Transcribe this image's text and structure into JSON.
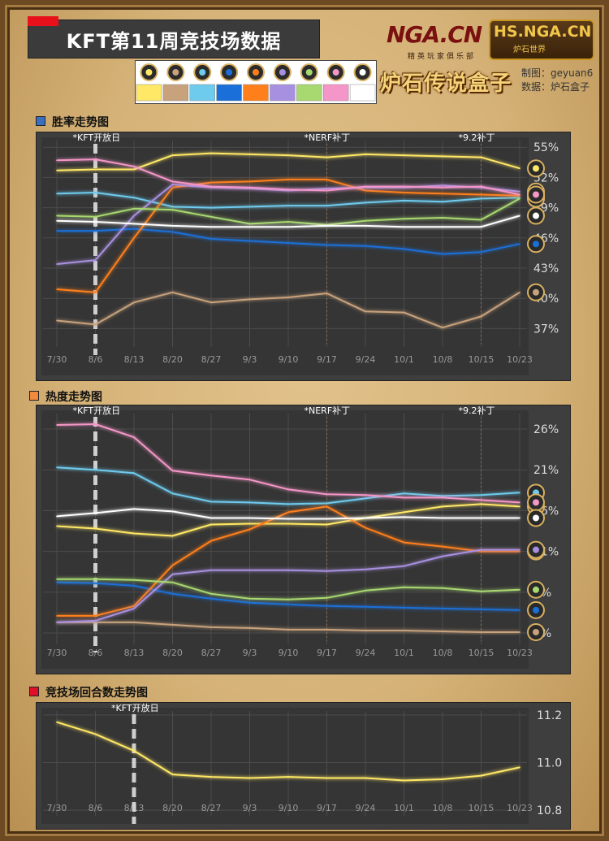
{
  "title": "KFT第11周竞技场数据",
  "logos": {
    "nga": "NGA.CN",
    "nga_sub": "精英玩家俱乐部",
    "hs": "HS.NGA.CN",
    "hs_sub": "炉石世界",
    "box": "炉石传说盒子"
  },
  "credits": {
    "maker": "制图：geyuan6",
    "source": "数据：炉石盒子"
  },
  "legend_colors": [
    "#ffe866",
    "#c8a27c",
    "#6ecbee",
    "#1a6fd8",
    "#ff7f1a",
    "#a890e0",
    "#a8d870",
    "#f596c8",
    "#ffffff"
  ],
  "legend_icons": [
    "hunter-icon",
    "warrior-icon",
    "mage-icon",
    "warlock-icon",
    "shaman-icon",
    "priest-icon",
    "rogue-icon",
    "paladin-icon",
    "druid-icon"
  ],
  "chart_data": [
    {
      "type": "line",
      "title": "胜率走势图",
      "categories": [
        "7/30",
        "8/6",
        "8/13",
        "8/20",
        "8/27",
        "9/3",
        "9/10",
        "9/17",
        "9/24",
        "10/1",
        "10/8",
        "10/15",
        "10/23"
      ],
      "ylim": [
        35.5,
        55.5
      ],
      "yticks": [
        "55%",
        "52%",
        "49%",
        "46%",
        "43%",
        "40%",
        "37%"
      ],
      "ytick_values": [
        55,
        52,
        49,
        46,
        43,
        40,
        37
      ],
      "annotations": [
        {
          "x": "8/6",
          "text": "*KFT开放日"
        },
        {
          "x": "9/17",
          "text": "*NERF补丁"
        },
        {
          "x": "10/15",
          "text": "*9.2补丁"
        }
      ],
      "series": [
        {
          "color": "#ffe866",
          "values": [
            52.7,
            52.8,
            52.8,
            54.2,
            54.4,
            54.3,
            54.2,
            54.0,
            54.3,
            54.2,
            54.1,
            54.0,
            52.9
          ]
        },
        {
          "color": "#c8a27c",
          "values": [
            37.8,
            37.4,
            39.6,
            40.6,
            39.6,
            39.9,
            40.1,
            40.5,
            38.7,
            38.6,
            37.1,
            38.2,
            40.6
          ]
        },
        {
          "color": "#6ecbee",
          "values": [
            50.4,
            50.5,
            50.0,
            49.1,
            49.0,
            49.1,
            49.2,
            49.2,
            49.5,
            49.7,
            49.6,
            49.9,
            50.0
          ]
        },
        {
          "color": "#1a6fd8",
          "values": [
            46.7,
            46.7,
            46.9,
            46.6,
            45.9,
            45.7,
            45.5,
            45.3,
            45.2,
            44.9,
            44.4,
            44.6,
            45.4
          ]
        },
        {
          "color": "#ff7f1a",
          "values": [
            40.9,
            40.6,
            46.0,
            51.0,
            51.5,
            51.6,
            51.8,
            51.8,
            50.7,
            50.5,
            50.4,
            50.3,
            50.2
          ]
        },
        {
          "color": "#a890e0",
          "values": [
            43.4,
            43.8,
            48.2,
            51.3,
            51.0,
            50.9,
            50.7,
            50.9,
            51.0,
            51.0,
            51.2,
            51.0,
            50.6
          ]
        },
        {
          "color": "#a8d870",
          "values": [
            48.2,
            48.1,
            48.9,
            48.8,
            48.1,
            47.4,
            47.6,
            47.3,
            47.7,
            47.9,
            48.0,
            47.8,
            49.9
          ]
        },
        {
          "color": "#f596c8",
          "values": [
            53.7,
            53.8,
            53.1,
            51.6,
            51.1,
            51.0,
            50.8,
            50.7,
            51.1,
            51.1,
            51.0,
            51.1,
            50.3
          ]
        },
        {
          "color": "#ffffff",
          "values": [
            47.7,
            47.6,
            47.4,
            47.2,
            47.1,
            47.1,
            47.1,
            47.2,
            47.2,
            47.1,
            47.1,
            47.1,
            48.2
          ]
        }
      ]
    },
    {
      "type": "line",
      "title": "热度走势图",
      "categories": [
        "7/30",
        "8/6",
        "8/13",
        "8/20",
        "8/27",
        "9/3",
        "9/10",
        "9/17",
        "9/24",
        "10/1",
        "10/8",
        "10/15",
        "10/23"
      ],
      "ylim": [
        0,
        27.5
      ],
      "yticks": [
        "26%",
        "21%",
        "16%",
        "11%",
        "6%",
        "1%"
      ],
      "ytick_values": [
        26,
        21,
        16,
        11,
        6,
        1
      ],
      "annotations": [
        {
          "x": "8/6",
          "text": "*KFT开放日"
        },
        {
          "x": "9/17",
          "text": "*NERF补丁"
        },
        {
          "x": "10/15",
          "text": "*9.2补丁"
        }
      ],
      "series": [
        {
          "color": "#ffe866",
          "values": [
            14.1,
            13.8,
            13.2,
            12.9,
            14.3,
            14.4,
            14.4,
            14.3,
            15.1,
            15.8,
            16.5,
            16.8,
            16.5
          ]
        },
        {
          "color": "#c8a27c",
          "values": [
            2.3,
            2.3,
            2.3,
            2.0,
            1.7,
            1.6,
            1.4,
            1.4,
            1.3,
            1.3,
            1.2,
            1.1,
            1.1
          ]
        },
        {
          "color": "#6ecbee",
          "values": [
            21.3,
            21.0,
            20.6,
            18.1,
            17.1,
            17.0,
            16.8,
            16.9,
            17.5,
            18.1,
            17.8,
            17.9,
            18.2
          ]
        },
        {
          "color": "#1a6fd8",
          "values": [
            7.2,
            7.1,
            6.8,
            5.8,
            5.2,
            4.7,
            4.5,
            4.3,
            4.2,
            4.1,
            4.0,
            3.9,
            3.8
          ]
        },
        {
          "color": "#ff7f1a",
          "values": [
            3.1,
            3.1,
            4.3,
            9.3,
            12.3,
            13.7,
            15.8,
            16.5,
            13.9,
            12.1,
            11.6,
            11.0,
            11.0
          ]
        },
        {
          "color": "#a890e0",
          "values": [
            2.3,
            2.5,
            4.0,
            8.2,
            8.7,
            8.7,
            8.7,
            8.6,
            8.8,
            9.2,
            10.4,
            11.2,
            11.2
          ]
        },
        {
          "color": "#a8d870",
          "values": [
            7.6,
            7.6,
            7.5,
            7.2,
            5.8,
            5.2,
            5.1,
            5.3,
            6.2,
            6.6,
            6.5,
            6.1,
            6.3
          ]
        },
        {
          "color": "#f596c8",
          "values": [
            26.5,
            26.6,
            25.0,
            20.9,
            20.3,
            19.8,
            18.6,
            18.0,
            17.9,
            17.6,
            17.6,
            17.3,
            17.0
          ]
        },
        {
          "color": "#ffffff",
          "values": [
            15.3,
            15.7,
            16.2,
            15.9,
            15.1,
            15.1,
            15.0,
            15.0,
            15.1,
            15.2,
            15.1,
            15.1,
            15.1
          ]
        }
      ]
    },
    {
      "type": "line",
      "title": "竞技场回合数走势图",
      "categories": [
        "7/30",
        "8/6",
        "8/13",
        "8/20",
        "8/27",
        "9/3",
        "9/10",
        "9/17",
        "9/24",
        "10/1",
        "10/8",
        "10/15",
        "10/23"
      ],
      "ylim": [
        10.79,
        11.21
      ],
      "yticks": [
        "11.2",
        "11.0",
        "10.8"
      ],
      "ytick_values": [
        11.2,
        11.0,
        10.8
      ],
      "annotations": [
        {
          "x": "8/13",
          "text": "*KFT开放日"
        }
      ],
      "series": [
        {
          "color": "#ffe866",
          "values": [
            11.17,
            11.12,
            11.05,
            10.95,
            10.94,
            10.935,
            10.94,
            10.935,
            10.935,
            10.925,
            10.93,
            10.945,
            10.98
          ]
        }
      ]
    }
  ]
}
